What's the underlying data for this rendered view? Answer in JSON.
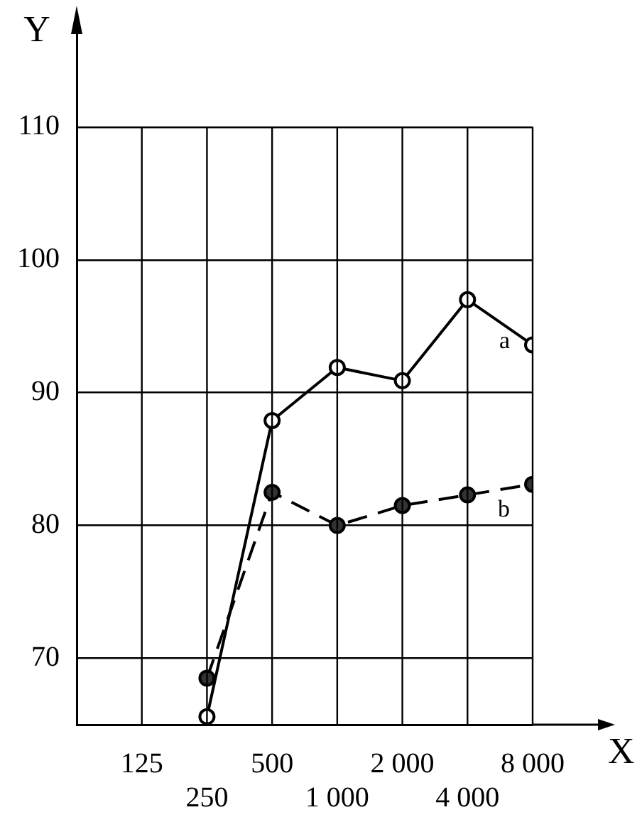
{
  "chart_data": {
    "type": "line",
    "xlabel": "X",
    "ylabel": "Y",
    "categories": [
      "125",
      "250",
      "500",
      "1 000",
      "2 000",
      "4 000",
      "8 000"
    ],
    "series": [
      {
        "name": "a",
        "color": "#000000",
        "line_style": "solid",
        "values": [
          null,
          65.6,
          87.9,
          91.9,
          90.9,
          97.0,
          93.6
        ]
      },
      {
        "name": "b",
        "color": "#000000",
        "line_style": "dashed",
        "values": [
          null,
          68.5,
          82.5,
          80.0,
          81.5,
          82.3,
          83.1
        ]
      }
    ],
    "ylim": [
      65,
      117
    ],
    "yticks": [
      70,
      80,
      90,
      100,
      110
    ],
    "grid": true,
    "legend": false,
    "marker": "circle"
  }
}
